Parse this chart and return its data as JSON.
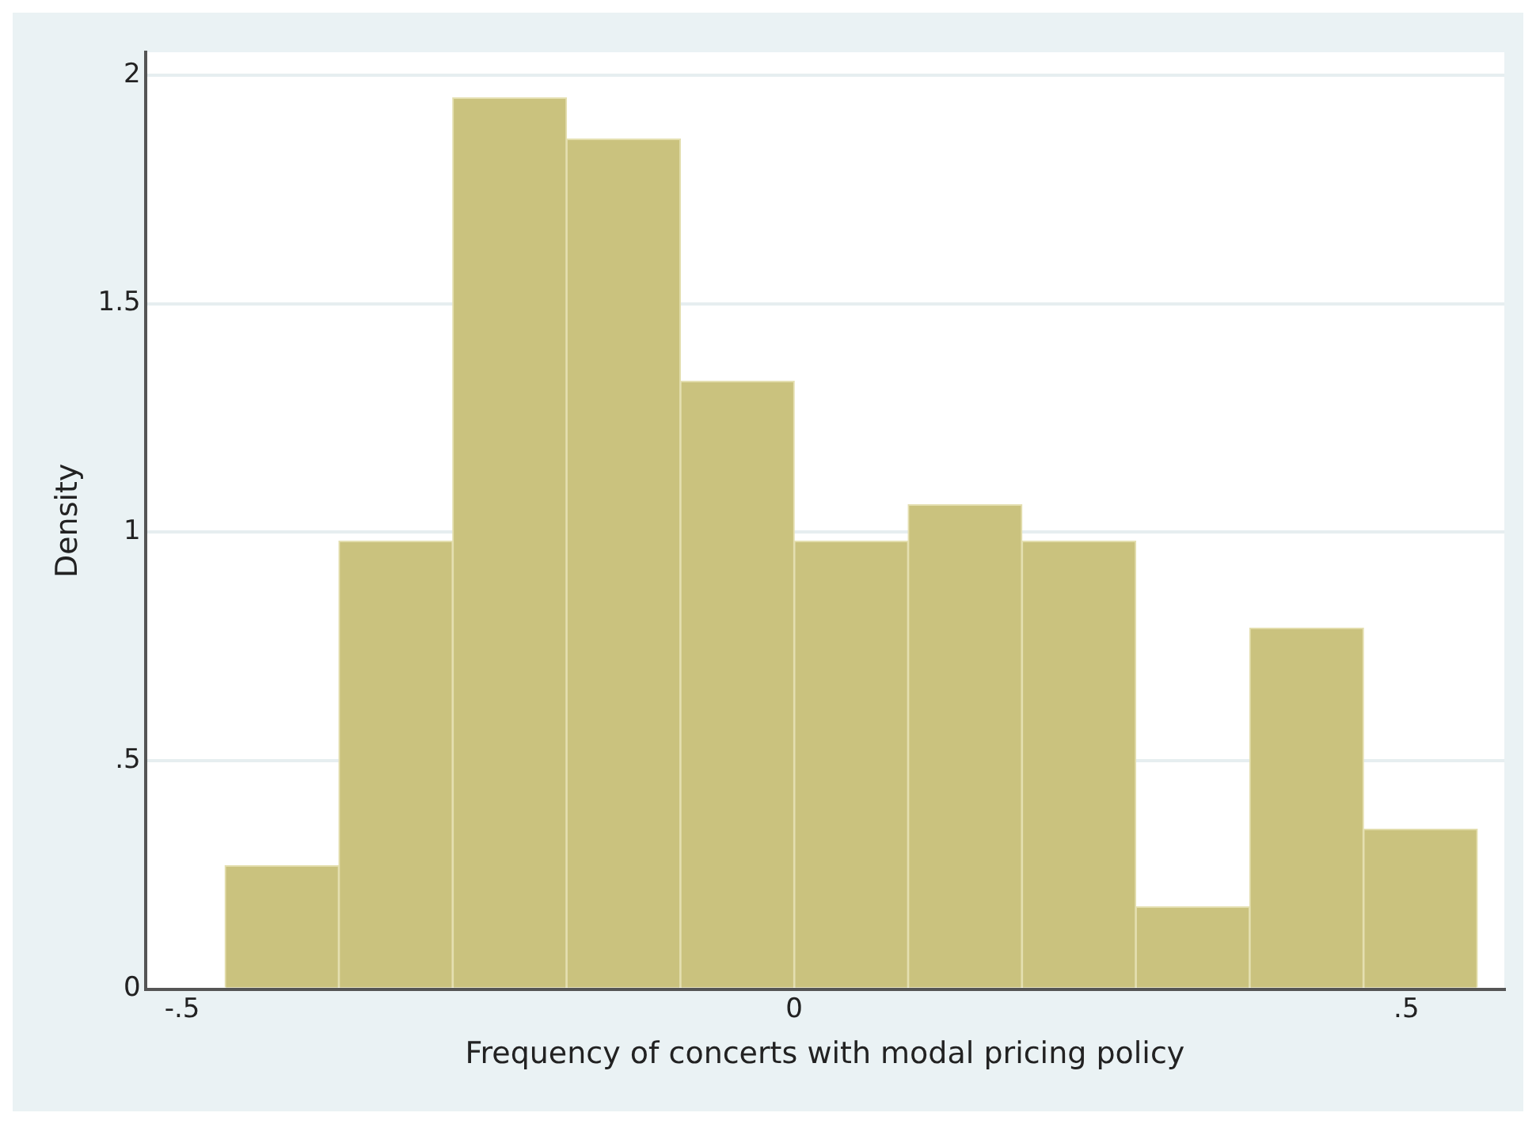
{
  "chart_data": {
    "type": "histogram",
    "xlabel": "Frequency of concerts with modal pricing policy",
    "ylabel": "Density",
    "bins": [
      -0.465,
      -0.372,
      -0.279,
      -0.186,
      -0.093,
      0,
      0.093,
      0.186,
      0.279,
      0.372,
      0.465,
      0.558
    ],
    "values": [
      0.27,
      0.98,
      1.95,
      1.86,
      1.33,
      0.98,
      1.06,
      0.98,
      0.18,
      0.79,
      0.35
    ],
    "color": "#cac27e",
    "xlim": [
      -0.53,
      0.58
    ],
    "xticks": [
      {
        "value": -0.5,
        "label": "-.5"
      },
      0,
      {
        "value": 0.5,
        "label": ".5"
      }
    ],
    "ylim": [
      0,
      2.05
    ],
    "yticks": [
      0,
      {
        "value": 0.5,
        "label": ".5"
      },
      1,
      {
        "value": 1.5,
        "label": "1.5"
      },
      2
    ],
    "grid": "y"
  }
}
